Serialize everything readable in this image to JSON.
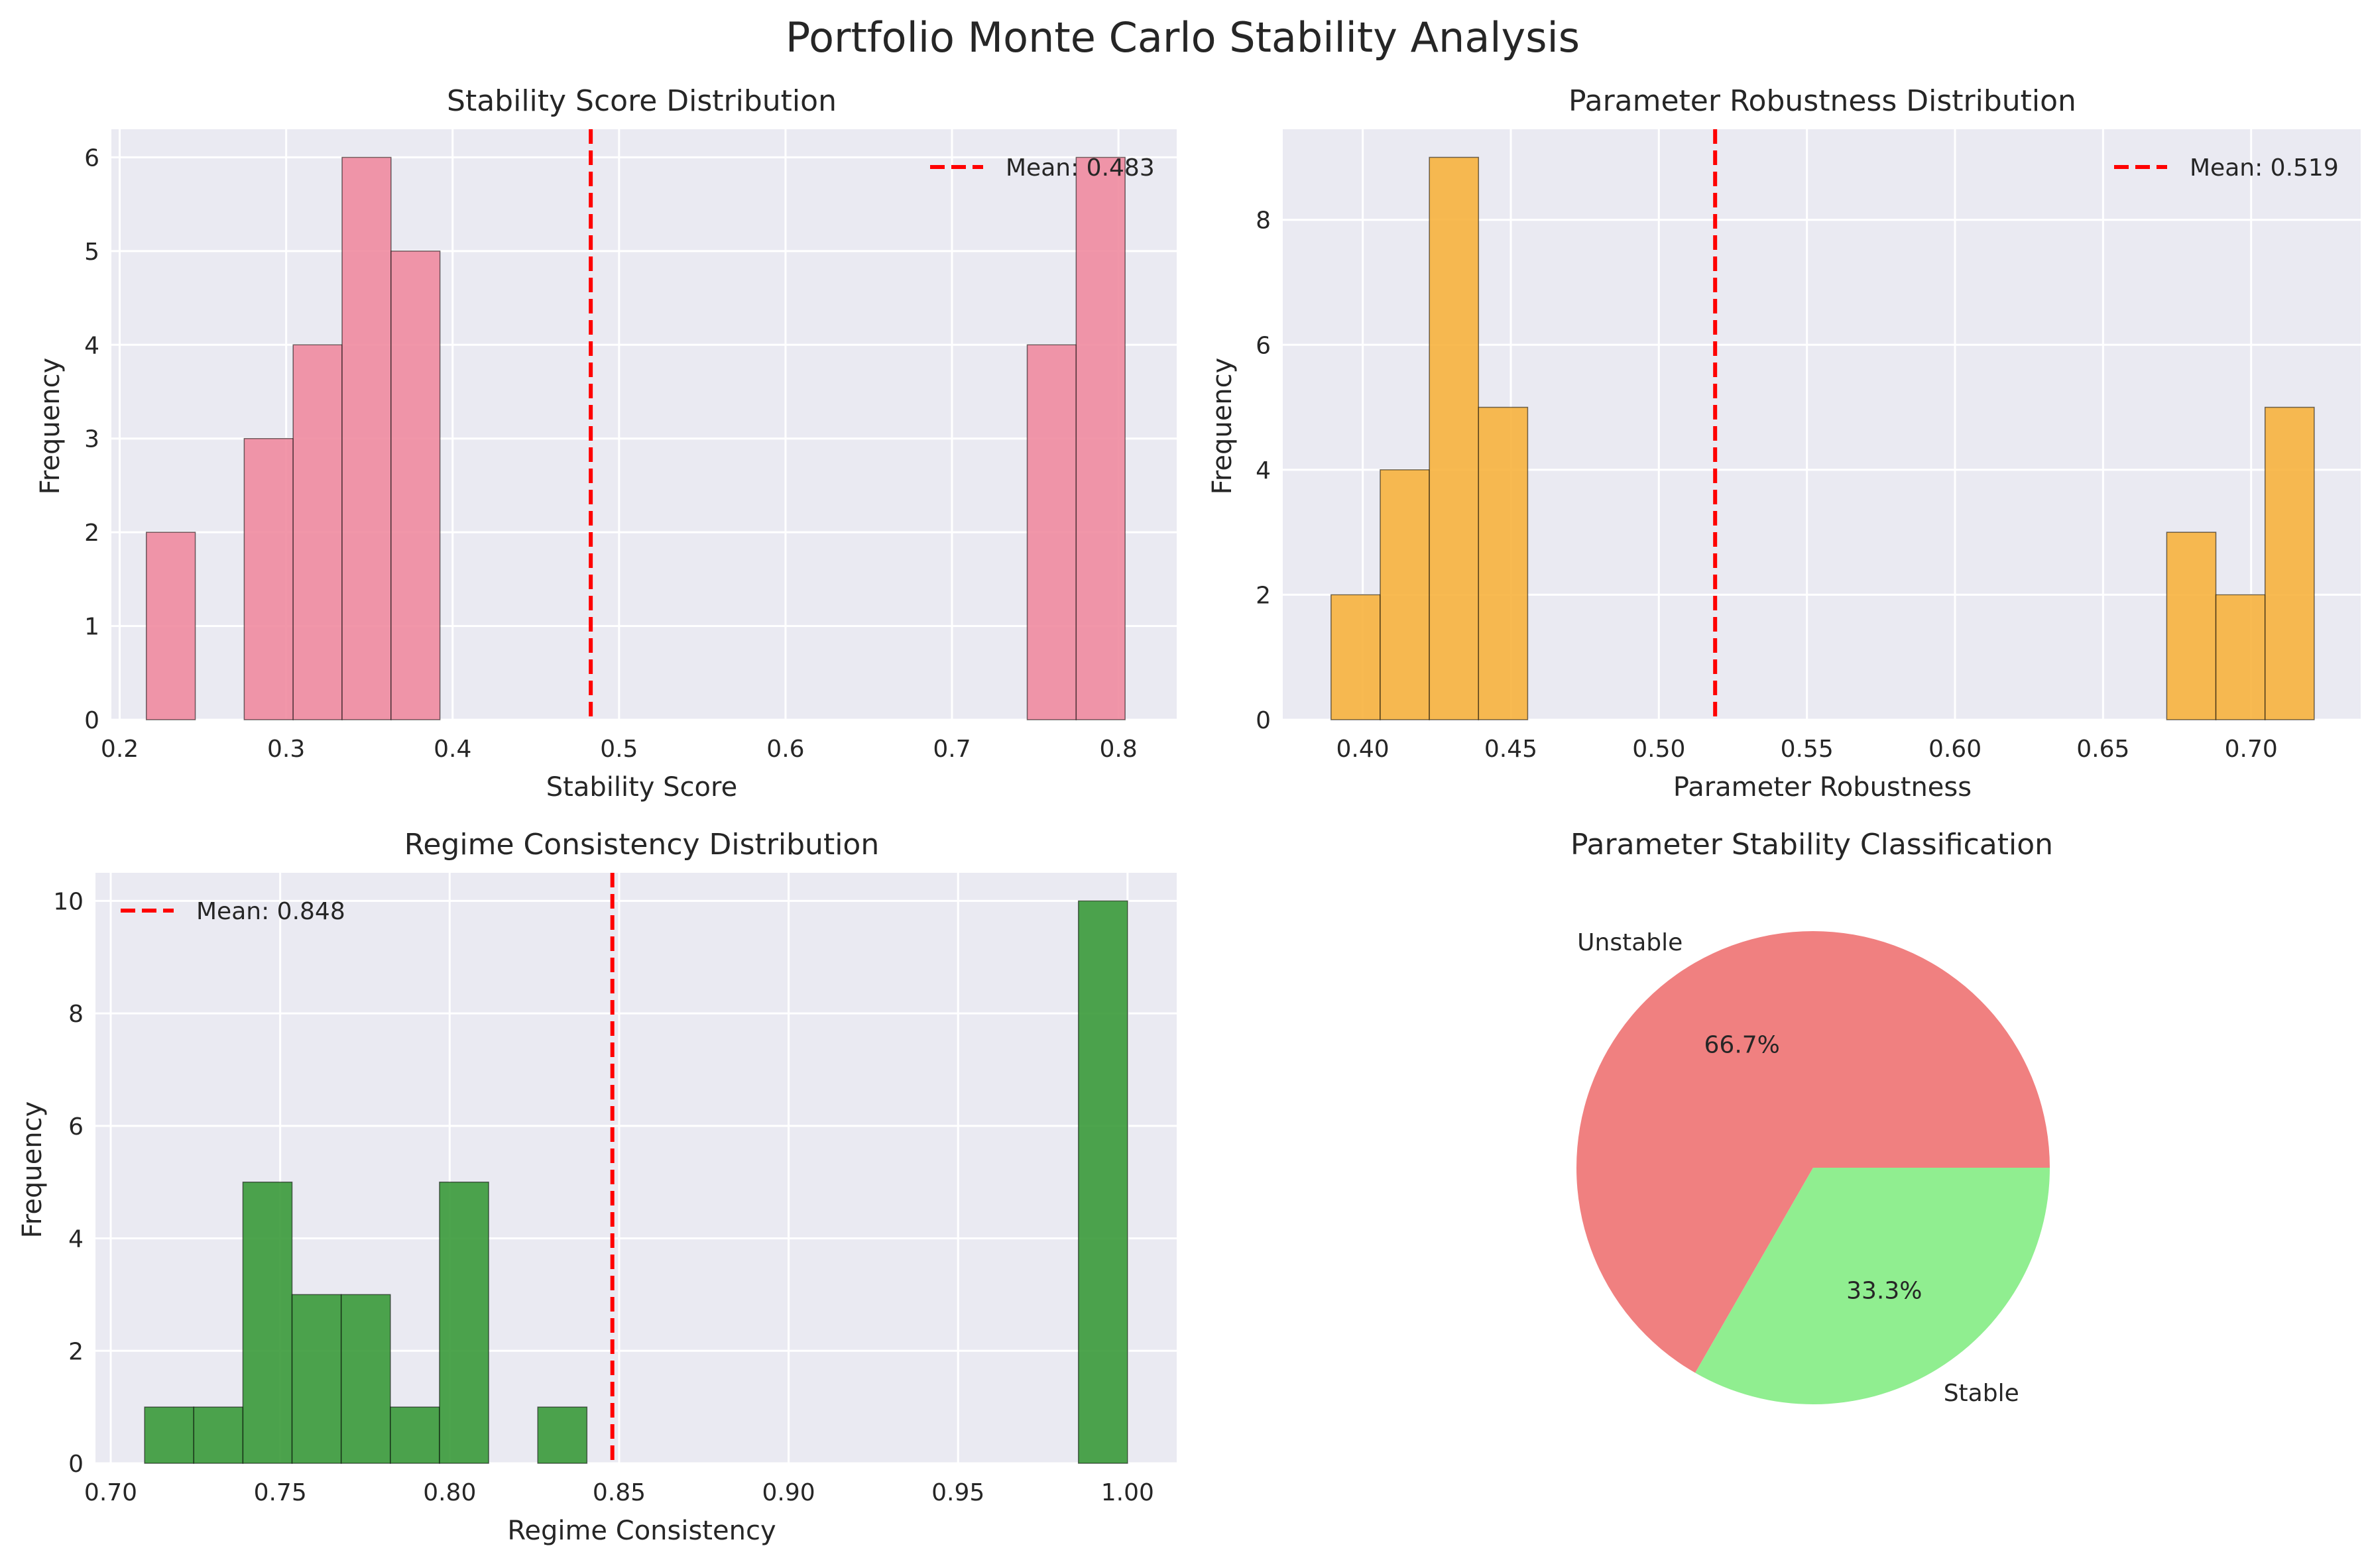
{
  "figure_title": "Portfolio Monte Carlo Stability Analysis",
  "chart_data": [
    {
      "type": "bar",
      "title": "Stability Score Distribution",
      "xlabel": "Stability Score",
      "ylabel": "Frequency",
      "xlim": [
        0.195,
        0.835
      ],
      "ylim": [
        0,
        6.3
      ],
      "xticks": [
        0.2,
        0.3,
        0.4,
        0.5,
        0.6,
        0.7,
        0.8
      ],
      "xtick_labels": [
        "0.2",
        "0.3",
        "0.4",
        "0.5",
        "0.6",
        "0.7",
        "0.8"
      ],
      "yticks": [
        0,
        1,
        2,
        3,
        4,
        5,
        6
      ],
      "ytick_labels": [
        "0",
        "1",
        "2",
        "3",
        "4",
        "5",
        "6"
      ],
      "bin_edges": [
        0.216,
        0.2454,
        0.2748,
        0.3042,
        0.3336,
        0.363,
        0.3924,
        0.4218,
        0.4512,
        0.4806,
        0.51,
        0.5394,
        0.5688,
        0.5982,
        0.6276,
        0.657,
        0.6864,
        0.7158,
        0.7452,
        0.7746,
        0.804
      ],
      "counts": [
        2,
        0,
        3,
        4,
        6,
        5,
        0,
        0,
        0,
        0,
        0,
        0,
        0,
        0,
        0,
        0,
        0,
        0,
        4,
        6
      ],
      "bar_color": "#f08ba0",
      "mean": 0.483,
      "mean_label": "Mean: 0.483",
      "legend_position": "upper right",
      "grid": true
    },
    {
      "type": "bar",
      "title": "Parameter Robustness Distribution",
      "xlabel": "Parameter Robustness",
      "ylabel": "Frequency",
      "xlim": [
        0.373,
        0.737
      ],
      "ylim": [
        0,
        9.45
      ],
      "xticks": [
        0.4,
        0.45,
        0.5,
        0.55,
        0.6,
        0.65,
        0.7
      ],
      "xtick_labels": [
        "0.40",
        "0.45",
        "0.50",
        "0.55",
        "0.60",
        "0.65",
        "0.70"
      ],
      "yticks": [
        0,
        2,
        4,
        6,
        8
      ],
      "ytick_labels": [
        "0",
        "2",
        "4",
        "6",
        "8"
      ],
      "bin_edges": [
        0.3893,
        0.4059,
        0.4225,
        0.4391,
        0.4557,
        0.4723,
        0.4889,
        0.5055,
        0.5221,
        0.5387,
        0.5553,
        0.5719,
        0.5885,
        0.6051,
        0.6217,
        0.6383,
        0.6549,
        0.6715,
        0.6881,
        0.7047,
        0.7213
      ],
      "counts": [
        2,
        4,
        9,
        5,
        0,
        0,
        0,
        0,
        0,
        0,
        0,
        0,
        0,
        0,
        0,
        0,
        0,
        3,
        2,
        5
      ],
      "bar_color": "#f7b23e",
      "mean": 0.519,
      "mean_label": "Mean: 0.519",
      "legend_position": "upper right",
      "grid": true
    },
    {
      "type": "bar",
      "title": "Regime Consistency Distribution",
      "xlabel": "Regime Consistency",
      "ylabel": "Frequency",
      "xlim": [
        0.6955,
        1.0145
      ],
      "ylim": [
        0,
        10.5
      ],
      "xticks": [
        0.7,
        0.75,
        0.8,
        0.85,
        0.9,
        0.95,
        1.0
      ],
      "xtick_labels": [
        "0.70",
        "0.75",
        "0.80",
        "0.85",
        "0.90",
        "0.95",
        "1.00"
      ],
      "yticks": [
        0,
        2,
        4,
        6,
        8,
        10
      ],
      "ytick_labels": [
        "0",
        "2",
        "4",
        "6",
        "8",
        "10"
      ],
      "bin_edges": [
        0.71,
        0.7245,
        0.739,
        0.7535,
        0.768,
        0.7825,
        0.797,
        0.8115,
        0.826,
        0.8405,
        0.855,
        0.8695,
        0.884,
        0.8985,
        0.913,
        0.9275,
        0.942,
        0.9565,
        0.971,
        0.9855,
        1.0
      ],
      "counts": [
        1,
        1,
        5,
        3,
        3,
        1,
        5,
        0,
        1,
        0,
        0,
        0,
        0,
        0,
        0,
        0,
        0,
        0,
        0,
        10
      ],
      "bar_color": "#3a9a3a",
      "mean": 0.848,
      "mean_label": "Mean: 0.848",
      "legend_position": "upper left",
      "grid": true
    },
    {
      "type": "pie",
      "title": "Parameter Stability Classification",
      "labels": [
        "Unstable",
        "Stable"
      ],
      "values": [
        66.7,
        33.3
      ],
      "autopct_labels": [
        "66.7%",
        "33.3%"
      ],
      "colors": [
        "#f08080",
        "#90ee90"
      ]
    }
  ],
  "colors": {
    "axes_bg": "#eaeaf2",
    "grid": "#ffffff",
    "mean_line": "#ff0000",
    "bar_edge": "#000000"
  }
}
